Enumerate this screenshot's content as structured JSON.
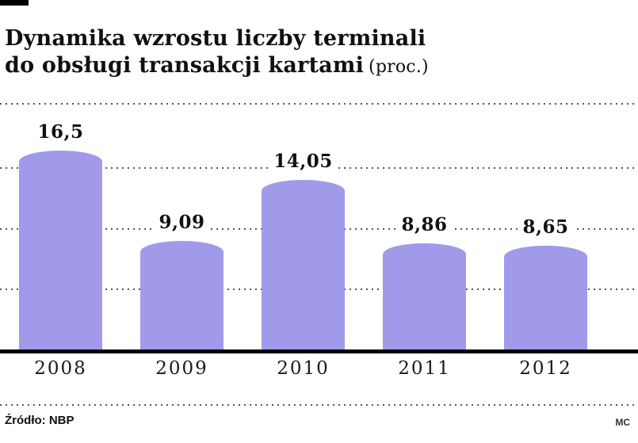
{
  "header": {
    "title_line1": "Dynamika wzrostu liczby terminali",
    "title_line2": "do obsługi transakcji kartami",
    "title_suffix": "(proc.)"
  },
  "footer": {
    "source": "Źródło: NBP",
    "credit": "MC"
  },
  "chart_data": {
    "type": "bar",
    "title": "Dynamika wzrostu liczby terminali do obsługi transakcji kartami (proc.)",
    "categories": [
      "2008",
      "2009",
      "2010",
      "2011",
      "2012"
    ],
    "values": [
      16.5,
      9.09,
      14.05,
      8.86,
      8.65
    ],
    "value_labels": [
      "16,5",
      "9,09",
      "14,05",
      "8,86",
      "8,65"
    ],
    "xlabel": "",
    "ylabel": "proc.",
    "ylim": [
      0,
      20.4
    ],
    "gridlines": [
      5,
      10,
      15
    ],
    "grid": "dotted",
    "legend": "none",
    "bar_color": "#a19aea"
  }
}
